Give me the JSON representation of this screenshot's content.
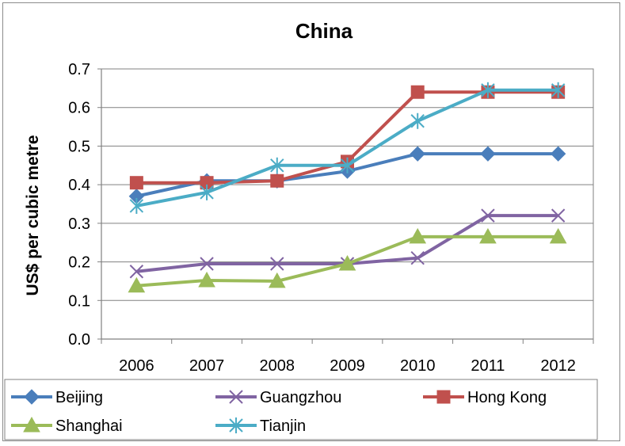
{
  "chart_data": {
    "type": "line",
    "title": "China",
    "xlabel": "",
    "ylabel": "US$ per cubic metre",
    "categories": [
      "2006",
      "2007",
      "2008",
      "2009",
      "2010",
      "2011",
      "2012"
    ],
    "ylim": [
      0,
      0.7
    ],
    "yticks": [
      "0.0",
      "0.1",
      "0.2",
      "0.3",
      "0.4",
      "0.5",
      "0.6",
      "0.7"
    ],
    "grid": true,
    "legend_position": "bottom",
    "series": [
      {
        "name": "Beijing",
        "color": "#4a7ebb",
        "marker": "diamond",
        "values": [
          0.37,
          0.41,
          0.41,
          0.435,
          0.48,
          0.48,
          0.48
        ]
      },
      {
        "name": "Guangzhou",
        "color": "#8064a2",
        "marker": "x",
        "values": [
          0.175,
          0.195,
          0.195,
          0.195,
          0.21,
          0.32,
          0.32
        ]
      },
      {
        "name": "Hong Kong",
        "color": "#c0504d",
        "marker": "square",
        "values": [
          0.405,
          0.405,
          0.41,
          0.46,
          0.64,
          0.64,
          0.64
        ]
      },
      {
        "name": "Shanghai",
        "color": "#9bbb59",
        "marker": "triangle",
        "values": [
          0.138,
          0.152,
          0.15,
          0.195,
          0.265,
          0.265,
          0.265
        ]
      },
      {
        "name": "Tianjin",
        "color": "#4bacc6",
        "marker": "star",
        "values": [
          0.345,
          0.38,
          0.45,
          0.45,
          0.565,
          0.645,
          0.645
        ]
      }
    ]
  }
}
